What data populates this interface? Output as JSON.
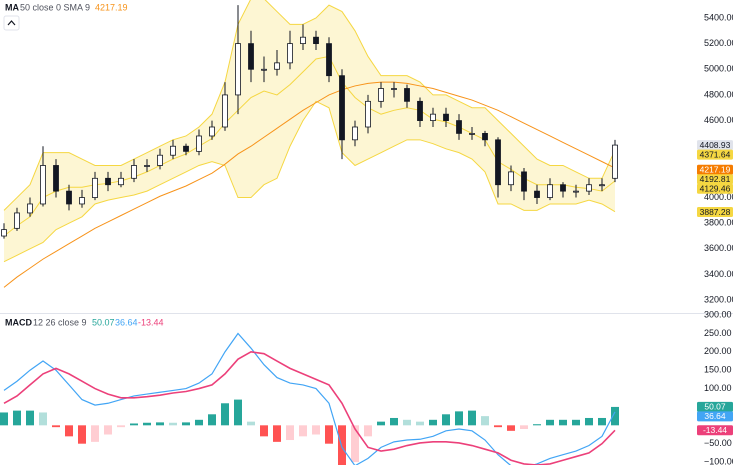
{
  "chart_data": [
    {
      "type": "candlestick",
      "legend": {
        "indicator": "MA",
        "params": "50 close 0 SMA 9",
        "value": 4217.19,
        "color": "#f7931a"
      },
      "open": [
        3700,
        3760,
        3880,
        3950,
        4250,
        4050,
        3950,
        4000,
        4150,
        4100,
        4150,
        4250,
        4250,
        4330,
        4400,
        4360,
        4480,
        4550,
        4800,
        5200,
        5000,
        5000,
        5050,
        5200,
        5250,
        5200,
        4950,
        4450,
        4550,
        4750,
        4850,
        4850,
        4750,
        4600,
        4650,
        4600,
        4500,
        4500,
        4450,
        4100,
        4200,
        4050,
        4000,
        4100,
        4050,
        4050,
        4100,
        4150
      ],
      "high": [
        3800,
        3920,
        4000,
        4400,
        4300,
        4100,
        4060,
        4200,
        4200,
        4200,
        4300,
        4300,
        4380,
        4450,
        4420,
        4530,
        4600,
        4900,
        5500,
        5300,
        5100,
        5150,
        5300,
        5350,
        5300,
        5250,
        5000,
        4600,
        4800,
        4900,
        4900,
        4880,
        4780,
        4700,
        4700,
        4650,
        4550,
        4520,
        4470,
        4250,
        4230,
        4100,
        4150,
        4120,
        4100,
        4150,
        4150,
        4450
      ],
      "low": [
        3680,
        3740,
        3850,
        3930,
        4000,
        3900,
        3920,
        3980,
        4050,
        4080,
        4120,
        4200,
        4220,
        4300,
        4330,
        4330,
        4450,
        4520,
        4650,
        4900,
        4900,
        4950,
        5000,
        5150,
        5150,
        4900,
        4300,
        4400,
        4500,
        4700,
        4780,
        4700,
        4550,
        4550,
        4550,
        4450,
        4450,
        4400,
        4000,
        4050,
        3980,
        3950,
        3980,
        4000,
        4000,
        4020,
        4050,
        4120
      ],
      "close": [
        3750,
        3880,
        3950,
        4250,
        4050,
        3950,
        4000,
        4150,
        4100,
        4150,
        4250,
        4250,
        4330,
        4400,
        4360,
        4480,
        4550,
        4800,
        5200,
        5000,
        5000,
        5050,
        5200,
        5250,
        5200,
        4950,
        4450,
        4550,
        4750,
        4850,
        4850,
        4750,
        4600,
        4650,
        4600,
        4500,
        4500,
        4450,
        4100,
        4200,
        4050,
        4000,
        4100,
        4050,
        4050,
        4100,
        4100,
        4408.93
      ],
      "candle_colors": {
        "up": "#ffffff",
        "down": "#131722",
        "outline": "#131722"
      },
      "ma": {
        "color": "#f7931a",
        "values": [
          3300,
          3380,
          3450,
          3520,
          3580,
          3640,
          3700,
          3760,
          3810,
          3860,
          3910,
          3960,
          4010,
          4050,
          4090,
          4140,
          4190,
          4260,
          4340,
          4400,
          4470,
          4540,
          4610,
          4680,
          4740,
          4800,
          4840,
          4870,
          4890,
          4900,
          4900,
          4890,
          4870,
          4850,
          4820,
          4790,
          4760,
          4720,
          4680,
          4630,
          4580,
          4530,
          4480,
          4430,
          4380,
          4330,
          4280,
          4230
        ]
      },
      "bb_upper": {
        "color": "#f5d742",
        "values": [
          3900,
          4000,
          4100,
          4350,
          4350,
          4350,
          4300,
          4250,
          4250,
          4250,
          4300,
          4350,
          4400,
          4450,
          4480,
          4550,
          4650,
          4900,
          5350,
          5550,
          5550,
          5450,
          5350,
          5350,
          5400,
          5500,
          5450,
          5300,
          5100,
          4950,
          4950,
          4950,
          4900,
          4800,
          4800,
          4750,
          4700,
          4700,
          4600,
          4500,
          4400,
          4300,
          4250,
          4250,
          4200,
          4150,
          4150,
          4370
        ]
      },
      "bb_basis": {
        "color": "#f5d742",
        "values": [
          3700,
          3780,
          3850,
          4000,
          4050,
          4080,
          4080,
          4100,
          4110,
          4130,
          4160,
          4200,
          4250,
          4300,
          4340,
          4400,
          4460,
          4580,
          4680,
          4780,
          4830,
          4800,
          4880,
          4980,
          5080,
          5100,
          4900,
          4780,
          4700,
          4650,
          4680,
          4700,
          4680,
          4610,
          4590,
          4550,
          4500,
          4450,
          4280,
          4220,
          4150,
          4100,
          4100,
          4100,
          4080,
          4070,
          4050,
          4130
        ]
      },
      "bb_lower": {
        "color": "#f5d742",
        "values": [
          3500,
          3550,
          3600,
          3650,
          3750,
          3800,
          3850,
          3950,
          3980,
          4000,
          4020,
          4050,
          4100,
          4150,
          4200,
          4250,
          4280,
          4250,
          4000,
          4000,
          4100,
          4150,
          4400,
          4600,
          4750,
          4700,
          4350,
          4250,
          4300,
          4350,
          4400,
          4450,
          4450,
          4420,
          4380,
          4350,
          4300,
          4200,
          3950,
          3950,
          3900,
          3900,
          3950,
          3950,
          3950,
          3980,
          3950,
          3890
        ]
      },
      "band_fill": "#fdf6d3",
      "ylim": [
        3100,
        5540
      ],
      "yticks": [
        {
          "value": 5400,
          "label": "5400.00"
        },
        {
          "value": 5200,
          "label": "5200.00"
        },
        {
          "value": 5000,
          "label": "5000.00"
        },
        {
          "value": 4800,
          "label": "4800.00"
        },
        {
          "value": 4600,
          "label": "4600.00"
        },
        {
          "value": 4000,
          "label": "4000.00"
        },
        {
          "value": 3800,
          "label": "3800.00"
        },
        {
          "value": 3600,
          "label": "3600.00"
        },
        {
          "value": 3400,
          "label": "3400.00"
        },
        {
          "value": 3200,
          "label": "3200.00"
        }
      ],
      "price_labels": [
        {
          "value": 4408.93,
          "color": "#e0e3eb",
          "text_color": "#131722"
        },
        {
          "value": 4371.64,
          "color": "#f5d742",
          "text_color": "#131722"
        },
        {
          "value": 4217.19,
          "color": "#f57c00",
          "text_color": "#ffffff"
        },
        {
          "value": 4192.81,
          "color": "#f5d742",
          "text_color": "#131722"
        },
        {
          "value": 4129.46,
          "color": "#f5d742",
          "text_color": "#131722"
        },
        {
          "value": 3887.28,
          "color": "#f5d742",
          "text_color": "#131722"
        }
      ]
    },
    {
      "type": "macd",
      "legend": {
        "indicator": "MACD",
        "params": "12 26 close 9"
      },
      "macd": {
        "color": "#42a5f5",
        "values": [
          95,
          120,
          150,
          175,
          150,
          110,
          70,
          55,
          60,
          70,
          80,
          85,
          90,
          95,
          100,
          115,
          140,
          200,
          250,
          210,
          165,
          130,
          115,
          110,
          100,
          60,
          -60,
          -110,
          -90,
          -60,
          -45,
          -40,
          -38,
          -30,
          -15,
          -10,
          -15,
          -40,
          -80,
          -110,
          -115,
          -105,
          -90,
          -80,
          -70,
          -55,
          -30,
          36.64
        ]
      },
      "signal": {
        "color": "#ec407a",
        "values": [
          60,
          80,
          110,
          140,
          155,
          140,
          120,
          100,
          85,
          75,
          75,
          78,
          82,
          88,
          92,
          100,
          110,
          140,
          180,
          200,
          195,
          175,
          155,
          140,
          125,
          110,
          60,
          -10,
          -60,
          -70,
          -65,
          -55,
          -48,
          -45,
          -45,
          -48,
          -55,
          -65,
          -75,
          -95,
          -105,
          -108,
          -105,
          -95,
          -85,
          -75,
          -50,
          -13.44
        ]
      },
      "histogram": {
        "values": [
          35,
          40,
          40,
          35,
          -5,
          -30,
          -50,
          -45,
          -25,
          -5,
          5,
          7,
          8,
          7,
          8,
          15,
          30,
          60,
          70,
          10,
          -30,
          -45,
          -40,
          -30,
          -25,
          -50,
          -120,
          -100,
          -30,
          10,
          20,
          15,
          10,
          15,
          30,
          38,
          40,
          25,
          -5,
          -15,
          -10,
          3,
          15,
          15,
          15,
          20,
          20,
          50.07
        ],
        "colors": {
          "up_rising": "#26a69a",
          "up_falling": "#b2dfdb",
          "down_falling": "#ff5252",
          "down_rising": "#ffcdd2"
        }
      },
      "ylim": [
        -108,
        303
      ],
      "yticks": [
        {
          "value": 300,
          "label": "300.00"
        },
        {
          "value": 250,
          "label": "250.00"
        },
        {
          "value": 200,
          "label": "200.00"
        },
        {
          "value": 150,
          "label": "150.00"
        },
        {
          "value": 100,
          "label": "100.00"
        },
        {
          "value": -50,
          "label": "−50.00"
        },
        {
          "value": -100,
          "label": "−100.00"
        }
      ],
      "price_labels": [
        {
          "value": 50.07,
          "color": "#26a69a",
          "text_color": "#ffffff"
        },
        {
          "value": 36.64,
          "color": "#42a5f5",
          "text_color": "#ffffff"
        },
        {
          "value": -13.44,
          "color": "#ec407a",
          "text_color": "#ffffff"
        }
      ]
    }
  ]
}
